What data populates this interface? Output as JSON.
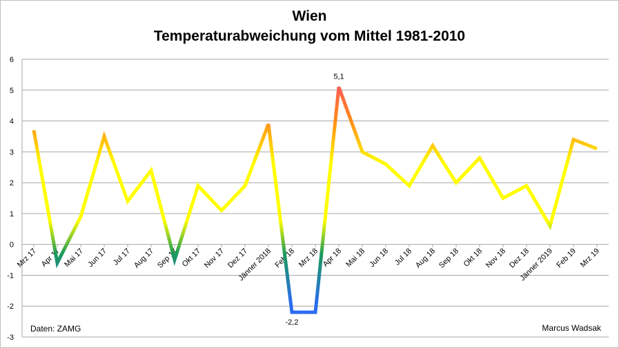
{
  "chart_data": {
    "type": "line",
    "title": "Wien",
    "subtitle": "Temperaturabweichung vom Mittel  1981-2010",
    "categories": [
      "Mrz 17",
      "Apr 17",
      "Mai 17",
      "Jun 17",
      "Jul 17",
      "Aug 17",
      "Sep 17",
      "Okt 17",
      "Nov 17",
      "Dez 17",
      "Jänner 2018",
      "Feb 18",
      "Mrz 18",
      "Apr 18",
      "Mai 18",
      "Jun 18",
      "Jul 18",
      "Aug 18",
      "Sep 18",
      "Okt 18",
      "Nov 18",
      "Dez 18",
      "Jänner 2019",
      "Feb 19",
      "Mrz 19"
    ],
    "values": [
      3.7,
      -0.6,
      0.9,
      3.5,
      1.4,
      2.4,
      -0.5,
      1.9,
      1.1,
      1.9,
      3.9,
      -2.2,
      -2.2,
      5.1,
      3.0,
      2.6,
      1.9,
      3.2,
      2.0,
      2.8,
      1.5,
      1.9,
      0.6,
      3.4,
      3.1
    ],
    "ylim": [
      -3,
      6
    ],
    "yticks": [
      -3,
      -2,
      -1,
      0,
      1,
      2,
      3,
      4,
      5,
      6
    ],
    "grid": true,
    "data_labels": [
      {
        "index": 13,
        "text": "5,1"
      },
      {
        "index": 11,
        "text": "-2,2"
      }
    ],
    "colors": {
      "high": "#ff3380",
      "warm": "#ff8c1a",
      "mid": "#ffff00",
      "low": "#1a9a5a",
      "cold": "#2b6cf0",
      "grid": "#a6a6a6"
    }
  },
  "notes": {
    "source": "Daten: ZAMG",
    "author": "Marcus Wadsak"
  }
}
